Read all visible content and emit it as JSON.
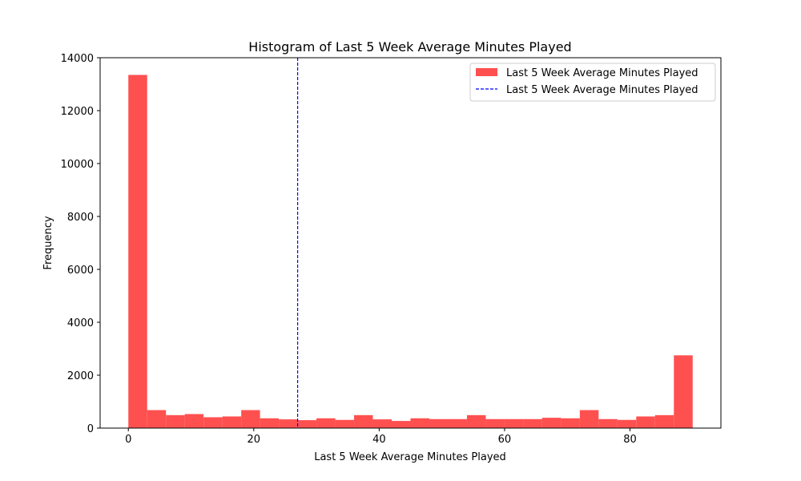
{
  "chart_data": {
    "type": "bar",
    "title": "Histogram of Last 5 Week Average Minutes Played",
    "xlabel": "Last 5 Week Average Minutes Played",
    "ylabel": "Frequency",
    "xlim": [
      -4.5,
      94.5
    ],
    "ylim": [
      0,
      14000
    ],
    "xticks": [
      0,
      20,
      40,
      60,
      80
    ],
    "yticks": [
      0,
      2000,
      4000,
      6000,
      8000,
      10000,
      12000,
      14000
    ],
    "bin_edges": [
      0,
      3,
      6,
      9,
      12,
      15,
      18,
      21,
      24,
      27,
      30,
      33,
      36,
      39,
      42,
      45,
      48,
      51,
      54,
      57,
      60,
      63,
      66,
      69,
      72,
      75,
      78,
      81,
      84,
      87,
      90
    ],
    "series": [
      {
        "name": "Last 5 Week Average Minutes Played",
        "color": "#ff5050",
        "values": [
          13350,
          680,
          490,
          530,
          410,
          440,
          680,
          370,
          330,
          300,
          370,
          310,
          490,
          330,
          270,
          370,
          340,
          340,
          490,
          340,
          340,
          340,
          390,
          370,
          680,
          340,
          310,
          440,
          490,
          2750
        ]
      }
    ],
    "vline": {
      "name": "Last 5 Week Average Minutes Played",
      "x": 27,
      "color": "#0000ff",
      "style": "dashed"
    },
    "legend_position": "top-right",
    "grid": false
  }
}
